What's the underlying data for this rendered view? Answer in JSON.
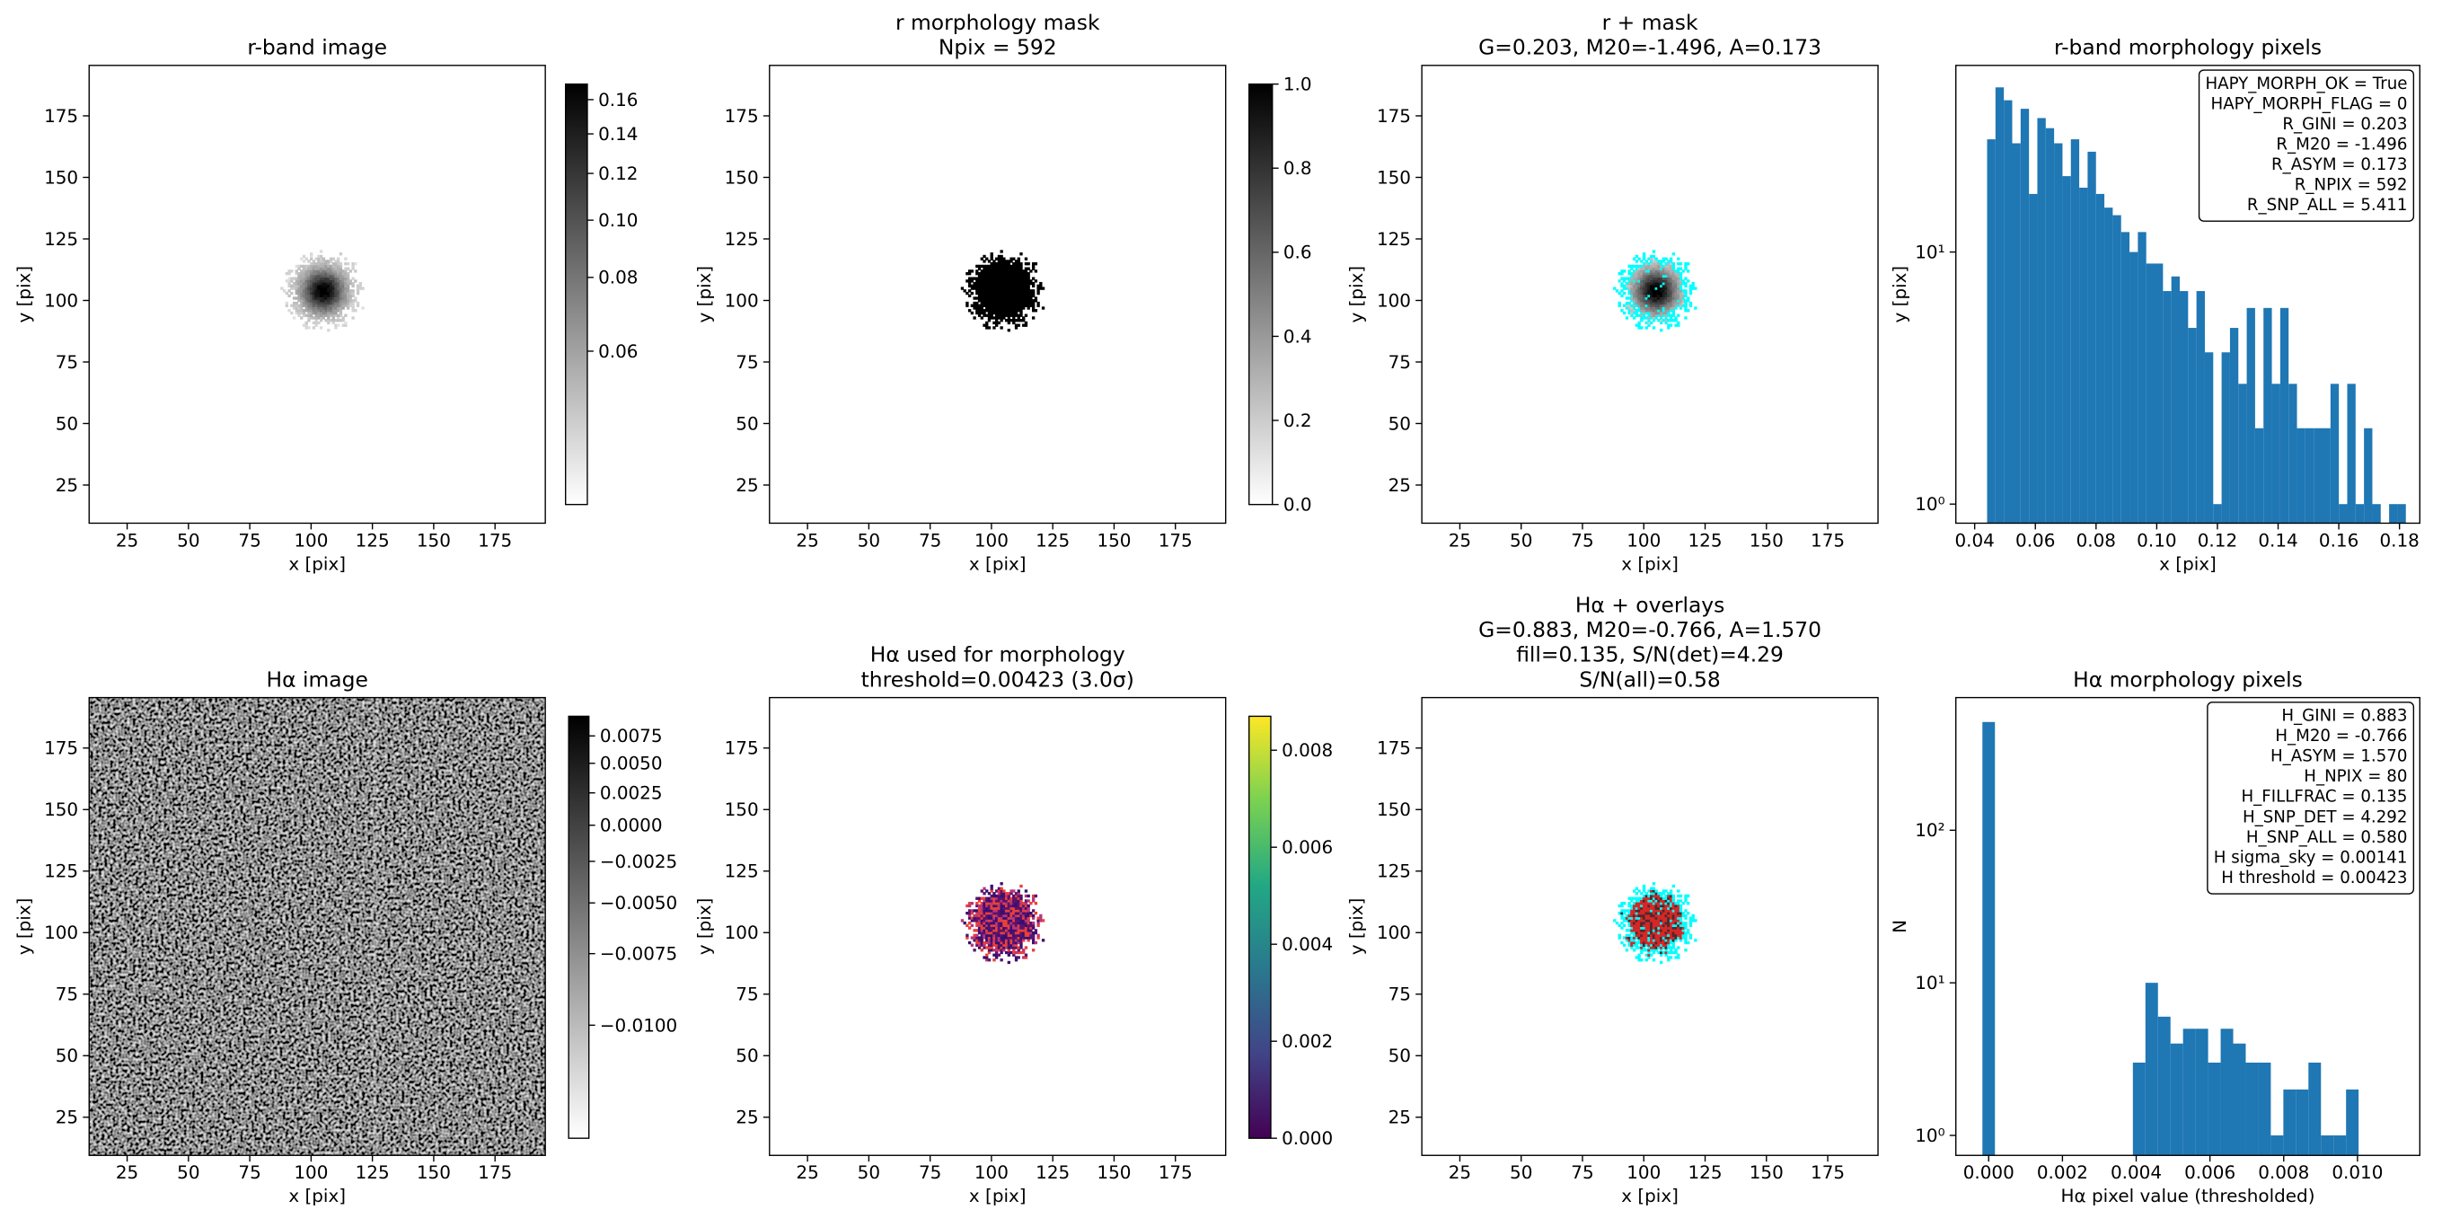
{
  "chart_data": [
    {
      "type": "image",
      "title": [
        "r-band image"
      ],
      "xlabel": "x [pix]",
      "ylabel": "y [pix]",
      "xlim": [
        9.5,
        195.5
      ],
      "ylim": [
        9.5,
        195.5
      ],
      "xticks": [
        25,
        50,
        75,
        100,
        125,
        150,
        175
      ],
      "yticks": [
        25,
        50,
        75,
        100,
        125,
        150,
        175
      ],
      "cmap": "gray_r",
      "colorbar": {
        "lim": [
          0.033,
          0.17
        ],
        "scale": "log",
        "ticks": [
          0.06,
          0.08,
          {
            "value": 0.1,
            "label": "0.10"
          },
          0.12,
          0.14,
          0.16
        ]
      }
    },
    {
      "type": "image",
      "title": [
        "r morphology mask",
        "Npix = 592"
      ],
      "xlabel": "x [pix]",
      "ylabel": "y [pix]",
      "xlim": [
        9.5,
        195.5
      ],
      "ylim": [
        9.5,
        195.5
      ],
      "xticks": [
        25,
        50,
        75,
        100,
        125,
        150,
        175
      ],
      "yticks": [
        25,
        50,
        75,
        100,
        125,
        150,
        175
      ],
      "cmap": "gray_r",
      "colorbar": {
        "lim": [
          0,
          1
        ],
        "scale": "linear",
        "ticks": [
          {
            "value": 0,
            "label": "0.0"
          },
          0.2,
          0.4,
          0.6,
          0.8,
          {
            "value": 1,
            "label": "1.0"
          }
        ]
      }
    },
    {
      "type": "image",
      "title": [
        "r + mask",
        "G=0.203, M20=-1.496, A=0.173"
      ],
      "xlabel": "x [pix]",
      "ylabel": "y [pix]",
      "xlim": [
        9.5,
        195.5
      ],
      "ylim": [
        9.5,
        195.5
      ],
      "xticks": [
        25,
        50,
        75,
        100,
        125,
        150,
        175
      ],
      "yticks": [
        25,
        50,
        75,
        100,
        125,
        150,
        175
      ],
      "cmap": "gray_r",
      "overlay_color": "#00ffff"
    },
    {
      "type": "histogram",
      "title": [
        "r-band morphology pixels"
      ],
      "xlabel": "x [pix]",
      "ylabel": "y [pix]",
      "color": "#1f77b4",
      "log_y": true,
      "bins": [
        0.0441,
        0.04686,
        0.04962,
        0.05238,
        0.05514,
        0.0579,
        0.06066,
        0.06342,
        0.06618,
        0.06894,
        0.0717,
        0.07446,
        0.07722,
        0.07998,
        0.08274,
        0.0855,
        0.08826,
        0.09102,
        0.09378,
        0.09654,
        0.0993,
        0.10206,
        0.10482,
        0.10758,
        0.11034,
        0.1131,
        0.11586,
        0.11862,
        0.12138,
        0.12414,
        0.1269,
        0.12966,
        0.13242,
        0.13518,
        0.13794,
        0.1407,
        0.14346,
        0.14622,
        0.14898,
        0.15174,
        0.1545,
        0.15726,
        0.16002,
        0.16278,
        0.16554,
        0.1683,
        0.17106,
        0.17382,
        0.17658,
        0.17934,
        0.1821
      ],
      "values": [
        28,
        45,
        40,
        27,
        37,
        17,
        34,
        31,
        27,
        20,
        28,
        18,
        25,
        17,
        15,
        14,
        12,
        10,
        12,
        9,
        9,
        7,
        8,
        7,
        5,
        7,
        4,
        1,
        4,
        5,
        3,
        6,
        2,
        6,
        3,
        6,
        3,
        2,
        2,
        2,
        2,
        3,
        1,
        3,
        1,
        2,
        1,
        0,
        1,
        1
      ],
      "xlim": [
        0.0338,
        0.1867
      ],
      "ylim": [
        0.84,
        55
      ],
      "xticks": [
        0.04,
        0.06,
        0.08,
        {
          "value": 0.1,
          "label": "0.10"
        },
        0.12,
        0.14,
        0.16,
        0.18
      ],
      "yticks": [
        {
          "value": 1,
          "label": "10⁰"
        },
        {
          "value": 10,
          "label": "10¹"
        }
      ],
      "stats": [
        "HAPY_MORPH_OK = True",
        "HAPY_MORPH_FLAG = 0",
        "R_GINI = 0.203",
        "R_M20 = -1.496",
        "R_ASYM = 0.173",
        "R_NPIX = 592",
        "R_SNP_ALL = 5.411"
      ]
    },
    {
      "type": "image",
      "title": [
        "Hα image"
      ],
      "xlabel": "x [pix]",
      "ylabel": "y [pix]",
      "xlim": [
        9.5,
        195.5
      ],
      "ylim": [
        9.5,
        195.5
      ],
      "xticks": [
        25,
        50,
        75,
        100,
        125,
        150,
        175
      ],
      "yticks": [
        25,
        50,
        75,
        100,
        125,
        150,
        175
      ],
      "cmap": "gray_r",
      "colorbar": {
        "lim": [
          -0.0115,
          0.0094
        ],
        "scale": "sqrt",
        "ticks": [
          0.0075,
          {
            "value": 0.005,
            "label": "0.0050"
          },
          0.0025,
          {
            "value": 0,
            "label": "0.0000"
          },
          {
            "value": -0.0025,
            "label": "−0.0025"
          },
          {
            "value": -0.005,
            "label": "−0.0050"
          },
          {
            "value": -0.0075,
            "label": "−0.0075"
          },
          {
            "value": -0.01,
            "label": "−0.0100"
          }
        ]
      }
    },
    {
      "type": "image",
      "title": [
        "Hα used for morphology",
        "threshold=0.00423 (3.0σ)"
      ],
      "xlabel": "x [pix]",
      "ylabel": "y [pix]",
      "xlim": [
        9.5,
        195.5
      ],
      "ylim": [
        9.5,
        195.5
      ],
      "xticks": [
        25,
        50,
        75,
        100,
        125,
        150,
        175
      ],
      "yticks": [
        25,
        50,
        75,
        100,
        125,
        150,
        175
      ],
      "cmap": "viridis",
      "colorbar": {
        "lim": [
          0,
          0.0087
        ],
        "scale": "linear",
        "ticks": [
          {
            "value": 0,
            "label": "0.000"
          },
          {
            "value": 0.002,
            "label": "0.002"
          },
          {
            "value": 0.004,
            "label": "0.004"
          },
          {
            "value": 0.006,
            "label": "0.006"
          },
          {
            "value": 0.008,
            "label": "0.008"
          }
        ]
      }
    },
    {
      "type": "image",
      "title": [
        "Hα + overlays",
        "G=0.883, M20=-0.766, A=1.570",
        "fill=0.135, S/N(det)=4.29",
        "S/N(all)=0.58"
      ],
      "xlabel": "x [pix]",
      "ylabel": "y [pix]",
      "xlim": [
        9.5,
        195.5
      ],
      "ylim": [
        9.5,
        195.5
      ],
      "xticks": [
        25,
        50,
        75,
        100,
        125,
        150,
        175
      ],
      "yticks": [
        25,
        50,
        75,
        100,
        125,
        150,
        175
      ],
      "cmap": "gray_r",
      "overlay_color": "#00ffff"
    },
    {
      "type": "histogram",
      "title": [
        "Hα morphology pixels"
      ],
      "xlabel": "Hα pixel value (thresholded)",
      "ylabel": "N",
      "color": "#1f77b4",
      "log_y": true,
      "bins": [
        -0.00017,
        0.00017,
        0.00051,
        0.00085,
        0.00119,
        0.00153,
        0.00187,
        0.00221,
        0.00255,
        0.00289,
        0.00323,
        0.00357,
        0.00391,
        0.00425,
        0.00459,
        0.00493,
        0.00527,
        0.00561,
        0.00595,
        0.00629,
        0.00663,
        0.00697,
        0.00731,
        0.00765,
        0.00799,
        0.00833,
        0.00867,
        0.00901,
        0.00935,
        0.00969,
        0.01003
      ],
      "values": [
        512,
        0,
        0,
        0,
        0,
        0,
        0,
        0,
        0,
        0,
        0,
        0,
        3,
        10,
        6,
        4,
        5,
        5,
        3,
        5,
        4,
        3,
        3,
        1,
        2,
        2,
        3,
        1,
        1,
        2
      ],
      "xlim": [
        -0.00089,
        0.01169
      ],
      "ylim": [
        0.74,
        740
      ],
      "xticks": [
        {
          "value": 0,
          "label": "0.000"
        },
        {
          "value": 0.002,
          "label": "0.002"
        },
        {
          "value": 0.004,
          "label": "0.004"
        },
        {
          "value": 0.006,
          "label": "0.006"
        },
        {
          "value": 0.008,
          "label": "0.008"
        },
        {
          "value": 0.01,
          "label": "0.010"
        }
      ],
      "yticks": [
        {
          "value": 1,
          "label": "10⁰"
        },
        {
          "value": 10,
          "label": "10¹"
        },
        {
          "value": 100,
          "label": "10²"
        }
      ],
      "stats": [
        "H_GINI = 0.883",
        "H_M20 = -0.766",
        "H_ASYM = 1.570",
        "H_NPIX = 80",
        "H_FILLFRAC = 0.135",
        "H_SNP_DET = 4.292",
        "H_SNP_ALL = 0.580",
        "H sigma_sky = 0.00141",
        "H threshold = 0.00423"
      ]
    }
  ]
}
